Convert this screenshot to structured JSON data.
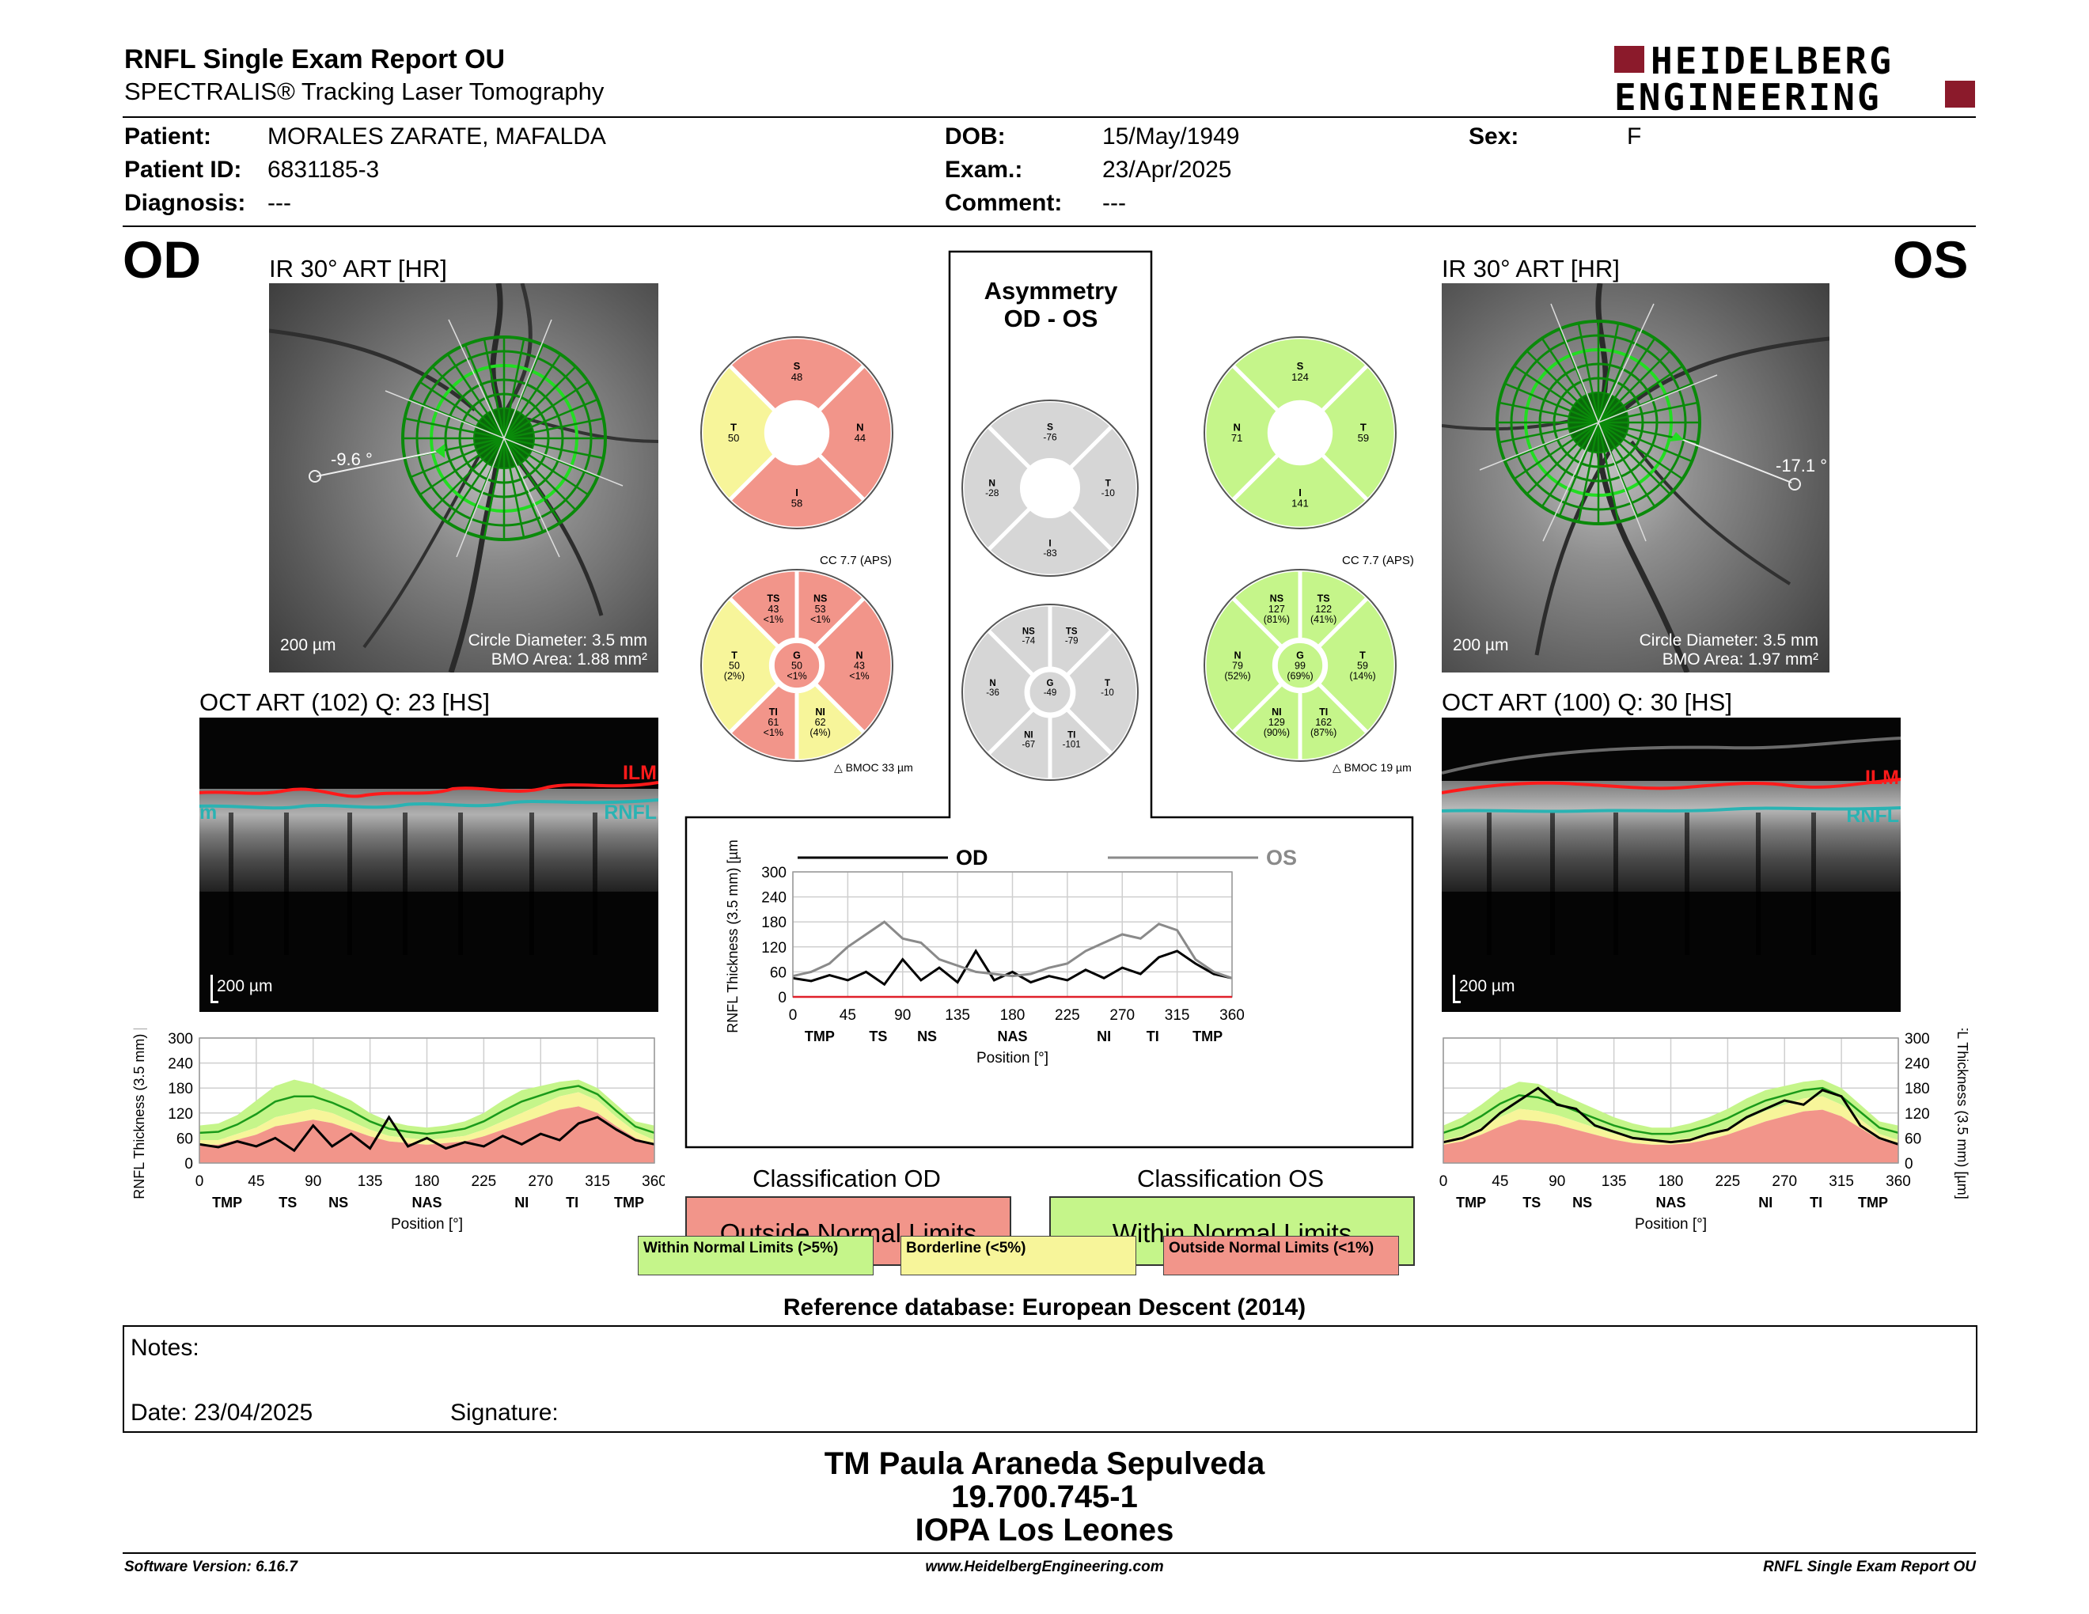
{
  "header": {
    "title": "RNFL Single Exam Report OU",
    "subtitle": "SPECTRALIS® Tracking Laser Tomography",
    "logo_line1": "HEIDELBERG",
    "logo_line2": "ENGINEERING"
  },
  "patient": {
    "patient_label": "Patient:",
    "patient_value": "MORALES ZARATE, MAFALDA",
    "id_label": "Patient ID:",
    "id_value": "6831185-3",
    "diagnosis_label": "Diagnosis:",
    "diagnosis_value": "---",
    "dob_label": "DOB:",
    "dob_value": "15/May/1949",
    "exam_label": "Exam.:",
    "exam_value": "23/Apr/2025",
    "comment_label": "Comment:",
    "comment_value": "---",
    "sex_label": "Sex:",
    "sex_value": "F"
  },
  "od": {
    "eye_label": "OD",
    "ir_title": "IR 30° ART [HR]",
    "angle": "-9.6 °",
    "scale": "200 µm",
    "circle_diameter": "Circle Diameter: 3.5 mm",
    "bmo_area": "BMO Area: 1.88 mm²",
    "oct_title": "OCT ART (102) Q: 23 [HS]",
    "oct_scale": "200 µm",
    "ilm": "ILM",
    "rnfl": "RNFL",
    "rnfl_left": "m"
  },
  "os": {
    "eye_label": "OS",
    "ir_title": "IR 30° ART [HR]",
    "angle": "-17.1 °",
    "scale": "200 µm",
    "circle_diameter": "Circle Diameter: 3.5 mm",
    "bmo_area": "BMO Area: 1.97 mm²",
    "oct_title": "OCT ART (100) Q: 30 [HS]",
    "oct_scale": "200 µm",
    "ilm": "ILM",
    "rnfl": "RNFL"
  },
  "asymmetry": {
    "title_line1": "Asymmetry",
    "title_line2": "OD - OS"
  },
  "sectors": {
    "od_quad": {
      "S": "48",
      "N": "44",
      "I": "58",
      "T": "50"
    },
    "os_quad": {
      "S": "124",
      "N": "71",
      "I": "141",
      "T": "59"
    },
    "asym_quad": {
      "S": "-76",
      "N": "-28",
      "I": "-83",
      "T": "-10"
    },
    "od_cc": "CC 7.7 (APS)",
    "os_cc": "CC 7.7 (APS)",
    "od_bmoc": "BMOC 33 µm",
    "os_bmoc": "BMOC 19 µm",
    "od_six": {
      "TS": [
        "TS",
        "43",
        "<1%"
      ],
      "NS": [
        "NS",
        "53",
        "<1%"
      ],
      "N": [
        "N",
        "43",
        "<1%"
      ],
      "NI": [
        "NI",
        "62",
        "(4%)"
      ],
      "TI": [
        "TI",
        "61",
        "<1%"
      ],
      "T": [
        "T",
        "50",
        "(2%)"
      ],
      "G": [
        "G",
        "50",
        "<1%"
      ]
    },
    "os_six": {
      "NS": [
        "NS",
        "127",
        "(81%)"
      ],
      "TS": [
        "TS",
        "122",
        "(41%)"
      ],
      "T": [
        "T",
        "59",
        "(14%)"
      ],
      "TI": [
        "TI",
        "162",
        "(87%)"
      ],
      "NI": [
        "NI",
        "129",
        "(90%)"
      ],
      "N": [
        "N",
        "79",
        "(52%)"
      ],
      "G": [
        "G",
        "99",
        "(69%)"
      ]
    },
    "asym_six": {
      "NS": [
        "NS",
        "-74"
      ],
      "TS": [
        "TS",
        "-79"
      ],
      "T": [
        "T",
        "-10"
      ],
      "TI": [
        "TI",
        "-101"
      ],
      "NI": [
        "NI",
        "-67"
      ],
      "N": [
        "N",
        "-36"
      ],
      "G": [
        "G",
        "-49"
      ]
    }
  },
  "colors": {
    "red": "#f2958a",
    "yellow": "#f7f59a",
    "green": "#c5f58a",
    "gray": "#d6d6d6"
  },
  "chart_data": [
    {
      "type": "line",
      "name": "od-profile",
      "x": [
        0,
        15,
        30,
        45,
        60,
        75,
        90,
        105,
        120,
        135,
        150,
        165,
        180,
        195,
        210,
        225,
        240,
        255,
        270,
        285,
        300,
        315,
        330,
        345,
        360
      ],
      "series": [
        {
          "values": [
            45,
            38,
            52,
            40,
            60,
            30,
            90,
            40,
            70,
            35,
            110,
            40,
            60,
            35,
            50,
            40,
            65,
            45,
            70,
            55,
            95,
            110,
            80,
            55,
            45
          ]
        }
      ],
      "normal_band": {
        "lower": [
          55,
          55,
          70,
          85,
          110,
          120,
          130,
          120,
          100,
          80,
          65,
          60,
          55,
          60,
          65,
          80,
          100,
          120,
          140,
          160,
          170,
          150,
          110,
          75,
          55
        ],
        "upper": [
          90,
          95,
          115,
          150,
          185,
          200,
          190,
          170,
          150,
          120,
          100,
          90,
          85,
          90,
          100,
          120,
          150,
          175,
          185,
          195,
          200,
          180,
          140,
          100,
          90
        ]
      },
      "xticks": [
        "0",
        "45",
        "90",
        "135",
        "180",
        "225",
        "270",
        "315",
        "360"
      ],
      "sectors": [
        "TMP",
        "TS",
        "NS",
        "NAS",
        "NI",
        "TI",
        "TMP"
      ],
      "yticks": [
        "300",
        "240",
        "180",
        "120",
        "60",
        "0"
      ],
      "xlabel": "Position [°]",
      "ylabel": "RNFL Thickness (3.5 mm) [µm]",
      "ylim": [
        0,
        300
      ]
    },
    {
      "type": "line",
      "name": "os-profile",
      "x": [
        0,
        15,
        30,
        45,
        60,
        75,
        90,
        105,
        120,
        135,
        150,
        165,
        180,
        195,
        210,
        225,
        240,
        255,
        270,
        285,
        300,
        315,
        330,
        345,
        360
      ],
      "series": [
        {
          "values": [
            50,
            60,
            80,
            120,
            150,
            180,
            140,
            130,
            90,
            75,
            60,
            55,
            50,
            55,
            70,
            80,
            110,
            130,
            150,
            140,
            175,
            160,
            90,
            60,
            45
          ]
        }
      ],
      "normal_band": {
        "lower": [
          55,
          65,
          85,
          110,
          130,
          125,
          115,
          100,
          85,
          70,
          60,
          55,
          55,
          60,
          70,
          85,
          105,
          125,
          140,
          155,
          160,
          140,
          105,
          70,
          55
        ],
        "upper": [
          90,
          110,
          140,
          175,
          195,
          190,
          170,
          150,
          130,
          110,
          95,
          85,
          85,
          95,
          110,
          130,
          155,
          175,
          185,
          195,
          200,
          180,
          140,
          100,
          90
        ]
      },
      "xticks": [
        "0",
        "45",
        "90",
        "135",
        "180",
        "225",
        "270",
        "315",
        "360"
      ],
      "sectors": [
        "TMP",
        "TS",
        "NS",
        "NAS",
        "NI",
        "TI",
        "TMP"
      ],
      "yticks": [
        "300",
        "240",
        "180",
        "120",
        "60",
        "0"
      ],
      "xlabel": "Position [°]",
      "ylabel": "RNFL Thickness (3.5 mm) [µm]",
      "ylim": [
        0,
        300
      ]
    },
    {
      "type": "line",
      "name": "asymmetry-profile",
      "x": [
        0,
        15,
        30,
        45,
        60,
        75,
        90,
        105,
        120,
        135,
        150,
        165,
        180,
        195,
        210,
        225,
        240,
        255,
        270,
        285,
        300,
        315,
        330,
        345,
        360
      ],
      "series": [
        {
          "name": "OD",
          "values": [
            45,
            38,
            52,
            40,
            60,
            30,
            90,
            40,
            70,
            35,
            110,
            40,
            60,
            35,
            50,
            40,
            65,
            45,
            70,
            55,
            95,
            110,
            80,
            55,
            45
          ]
        },
        {
          "name": "OS",
          "values": [
            50,
            60,
            80,
            120,
            150,
            180,
            140,
            130,
            90,
            75,
            60,
            55,
            50,
            55,
            70,
            80,
            110,
            130,
            150,
            140,
            175,
            160,
            90,
            60,
            45
          ]
        }
      ],
      "xticks": [
        "0",
        "45",
        "90",
        "135",
        "180",
        "225",
        "270",
        "315",
        "360"
      ],
      "sectors": [
        "TMP",
        "TS",
        "NS",
        "NAS",
        "NI",
        "TI",
        "TMP"
      ],
      "yticks": [
        "300",
        "240",
        "180",
        "120",
        "60",
        "0"
      ],
      "xlabel": "Position [°]",
      "ylabel": "RNFL Thickness (3.5 mm) [µm]",
      "ylim": [
        0,
        300
      ]
    }
  ],
  "classification": {
    "od_title": "Classification OD",
    "od_value": "Outside Normal Limits",
    "os_title": "Classification OS",
    "os_value": "Within Normal Limits",
    "legend_green": "Within Normal Limits (>5%)",
    "legend_yellow": "Borderline (<5%)",
    "legend_red": "Outside Normal Limits (<1%)",
    "reference": "Reference database: European Descent (2014)"
  },
  "notes": {
    "notes_label": "Notes:",
    "date_label": "Date: 23/04/2025",
    "signature_label": "Signature:"
  },
  "signature_block": {
    "name": "TM Paula Araneda Sepulveda",
    "rut": "19.700.745-1",
    "clinic": "IOPA Los Leones"
  },
  "footer": {
    "software": "Software Version: 6.16.7",
    "website": "www.HeidelbergEngineering.com",
    "report": "RNFL Single Exam Report OU"
  }
}
